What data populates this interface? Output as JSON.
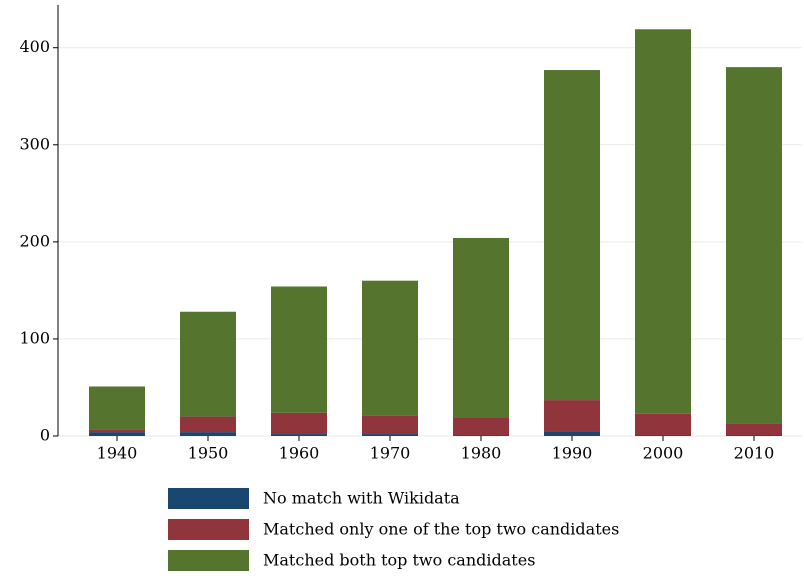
{
  "chart_data": {
    "type": "stacked_bar",
    "categories": [
      "1940",
      "1950",
      "1960",
      "1970",
      "1980",
      "1990",
      "2000",
      "2010"
    ],
    "series": [
      {
        "name": "No match with Wikidata",
        "color": "#1a476f",
        "values": [
          4,
          4,
          2,
          2,
          1,
          5,
          1,
          1
        ]
      },
      {
        "name": "Matched only one of the top two candidates",
        "color": "#90353b",
        "values": [
          3,
          16,
          22,
          19,
          18,
          32,
          22,
          12
        ]
      },
      {
        "name": "Matched both top two candidates",
        "color": "#55752f",
        "values": [
          44,
          108,
          130,
          139,
          185,
          340,
          396,
          367
        ]
      }
    ],
    "ylim": [
      0,
      444
    ],
    "yticks": [
      0,
      100,
      200,
      300,
      400
    ],
    "grid": true
  }
}
